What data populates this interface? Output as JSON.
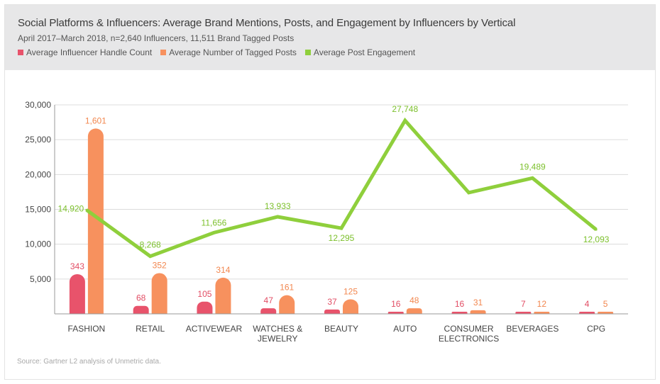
{
  "header": {
    "title": "Social Platforms & Influencers: Average Brand Mentions, Posts, and Engagement by Influencers by Vertical",
    "subtitle": "April 2017–March 2018, n=2,640 Influencers, 11,511 Brand Tagged Posts"
  },
  "legend": [
    {
      "label": "Average Influencer Handle Count",
      "color": "#e8536b"
    },
    {
      "label": "Average Number of Tagged Posts",
      "color": "#f7915e"
    },
    {
      "label": "Average Post Engagement",
      "color": "#8fcf3c"
    }
  ],
  "source": "Source: Gartner L2 analysis of Unmetric data.",
  "chart_data": {
    "type": "bar+line",
    "categories": [
      [
        "FASHION"
      ],
      [
        "RETAIL"
      ],
      [
        "ACTIVEWEAR"
      ],
      [
        "WATCHES &",
        "JEWELRY"
      ],
      [
        "BEAUTY"
      ],
      [
        "AUTO"
      ],
      [
        "CONSUMER",
        "ELECTRONICS"
      ],
      [
        "BEVERAGES"
      ],
      [
        "CPG"
      ]
    ],
    "ylim": [
      0,
      30000
    ],
    "yticks": [
      5000,
      10000,
      15000,
      20000,
      25000,
      30000
    ],
    "ytick_labels": [
      "5,000",
      "10,000",
      "15,000",
      "20,000",
      "25,000",
      "30,000"
    ],
    "series": [
      {
        "name": "Average Influencer Handle Count",
        "type": "bar",
        "color": "#e8536b",
        "labels": [
          "343",
          "68",
          "105",
          "47",
          "37",
          "16",
          "16",
          "7",
          "4"
        ],
        "display_values": [
          5700,
          1150,
          1750,
          800,
          620,
          280,
          280,
          120,
          70
        ]
      },
      {
        "name": "Average Number of Tagged Posts",
        "type": "bar",
        "color": "#f7915e",
        "labels": [
          "1,601",
          "352",
          "314",
          "161",
          "125",
          "48",
          "31",
          "12",
          "5"
        ],
        "display_values": [
          26600,
          5850,
          5200,
          2680,
          2080,
          800,
          520,
          200,
          85
        ]
      },
      {
        "name": "Average Post Engagement",
        "type": "line",
        "color": "#8fcf3c",
        "values": [
          14920,
          8268,
          11656,
          13933,
          12295,
          27748,
          17400,
          19489,
          12093
        ],
        "labels": [
          "14,920",
          "8,268",
          "11,656",
          "13,933",
          "12,295",
          "27,748",
          "",
          "19,489",
          "12,093"
        ]
      }
    ]
  }
}
